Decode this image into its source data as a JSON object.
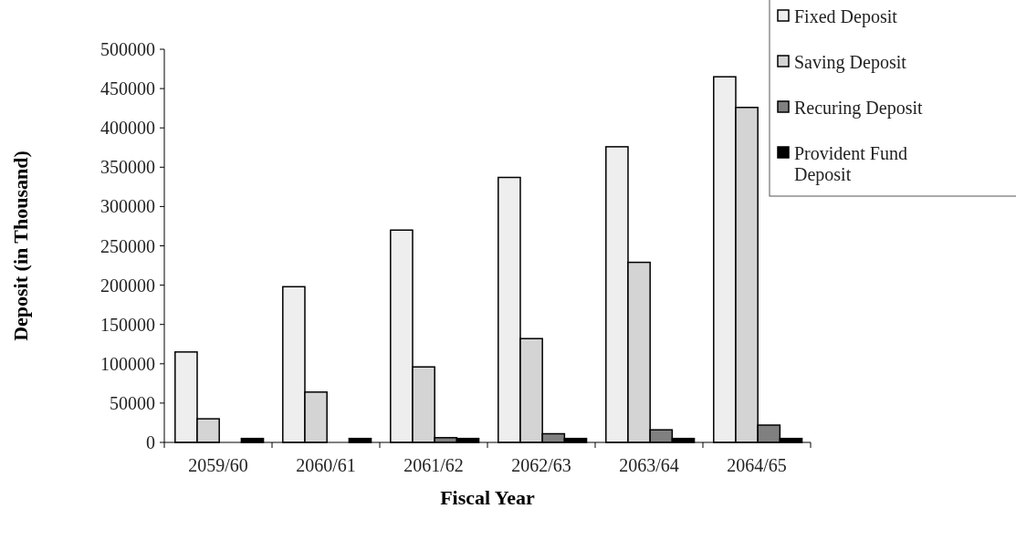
{
  "chart_data": {
    "type": "bar",
    "xlabel": "Fiscal Year",
    "ylabel": "Deposit (in Thousand)",
    "categories": [
      "2059/60",
      "2060/61",
      "2061/62",
      "2062/63",
      "2063/64",
      "2064/65"
    ],
    "series": [
      {
        "name": "Fixed Deposit",
        "color": "#eeeeee",
        "values": [
          115000,
          198000,
          270000,
          337000,
          376000,
          465000
        ]
      },
      {
        "name": "Saving Deposit",
        "color": "#d4d4d4",
        "values": [
          30000,
          64000,
          96000,
          132000,
          229000,
          426000
        ]
      },
      {
        "name": "Recuring Deposit",
        "color": "#808080",
        "values": [
          0,
          0,
          6000,
          11000,
          16000,
          22000
        ]
      },
      {
        "name": "Provident Fund Deposit",
        "color": "#000000",
        "values": [
          5000,
          5000,
          5000,
          5000,
          5000,
          5000
        ]
      }
    ],
    "ylim": [
      0,
      500000
    ],
    "yticks": [
      0,
      50000,
      100000,
      150000,
      200000,
      250000,
      300000,
      350000,
      400000,
      450000,
      500000
    ],
    "grid": false,
    "legend": "top right"
  }
}
